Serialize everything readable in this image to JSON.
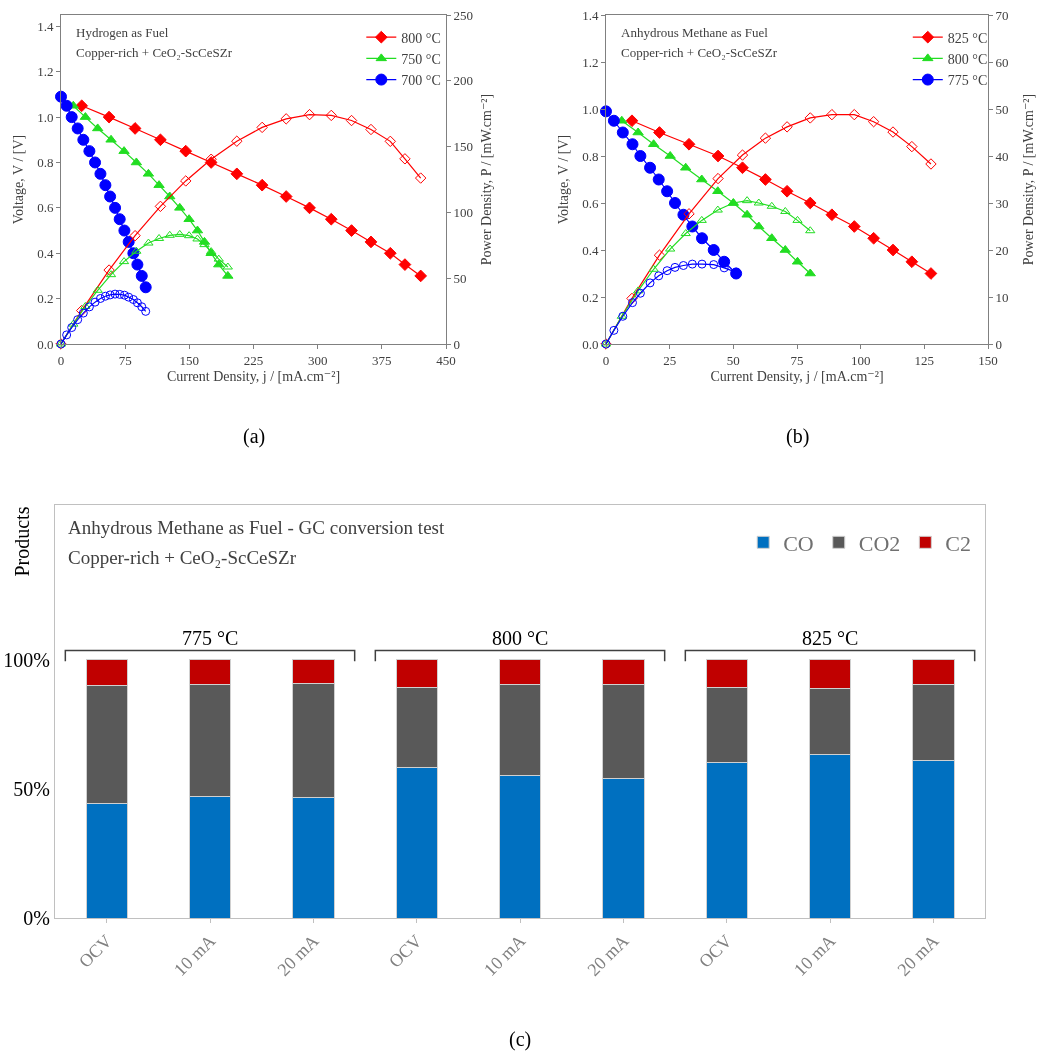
{
  "chart_data": [
    {
      "type": "line",
      "title": "Hydrogen as Fuel",
      "subtitle": "Copper-rich + CeO₂-ScCeSZr",
      "xlabel": "Current Density, j / [mA.cm⁻²]",
      "ylabel": "Voltage, V / [V]",
      "y2label": "Power Density, P / [mW.cm⁻²]",
      "xlim": [
        0,
        450
      ],
      "xticks": [
        0,
        75,
        150,
        225,
        300,
        375,
        450
      ],
      "ylim": [
        0,
        1.45
      ],
      "yticks": [
        {
          "value": 0,
          "label": "0.0"
        },
        0.2,
        0.4,
        0.6,
        0.8,
        {
          "value": 1,
          "label": "1.0"
        },
        1.2,
        1.4
      ],
      "y2lim": [
        0,
        250
      ],
      "y2ticks": [
        0,
        50,
        100,
        150,
        200,
        250
      ],
      "grid": false,
      "legend": "top right",
      "line_style": "solid",
      "annotations": [
        "(a)"
      ],
      "series": [
        {
          "name": "800 °C",
          "color": "#ff0000",
          "marker": "diamond",
          "x": [
            24.2,
            56.2,
            86.6,
            116.2,
            145.8,
            175.5,
            205.5,
            235.1,
            263.2,
            290.5,
            315.9,
            339.6,
            362.3,
            384.9,
            402,
            420.4
          ],
          "values": [
            1.05,
            1.0,
            0.95,
            0.9,
            0.85,
            0.8,
            0.75,
            0.7,
            0.65,
            0.6,
            0.55,
            0.5,
            0.45,
            0.4,
            0.35,
            0.3
          ]
        },
        {
          "name": "750 °C",
          "color": "#22dd22",
          "marker": "triangle",
          "x": [
            14.4,
            28.5,
            42.9,
            58.5,
            73.7,
            88.1,
            102.2,
            114.6,
            127.1,
            138.8,
            149.7,
            159.5,
            167.7,
            175.5,
            184.4,
            195.0
          ],
          "values": [
            1.05,
            1.0,
            0.95,
            0.9,
            0.85,
            0.8,
            0.75,
            0.7,
            0.65,
            0.6,
            0.55,
            0.5,
            0.45,
            0.4,
            0.35,
            0.3
          ]
        },
        {
          "name": "700 °C",
          "color": "#0000ff",
          "marker": "circle",
          "x": [
            0,
            6.6,
            12.5,
            19.5,
            26.1,
            33.2,
            39.8,
            46.1,
            51.9,
            57.4,
            63.2,
            68.6,
            74.1,
            79.1,
            84.6,
            89.3,
            94.4,
            99.0
          ],
          "values": [
            1.09,
            1.05,
            1.0,
            0.95,
            0.9,
            0.85,
            0.8,
            0.75,
            0.7,
            0.65,
            0.6,
            0.55,
            0.5,
            0.45,
            0.4,
            0.35,
            0.3,
            0.25
          ]
        },
        {
          "color": "#ff0000",
          "marker": "diamond",
          "axis": "y2",
          "x": [
            0,
            24.2,
            56.2,
            86.6,
            116.2,
            145.8,
            175.5,
            205.5,
            235.1,
            263.2,
            290.5,
            315.9,
            339.6,
            362.3,
            384.9,
            402,
            420.4
          ],
          "values": [
            0,
            25.4,
            56.2,
            82.3,
            104.6,
            123.9,
            140.4,
            154.1,
            164.6,
            171.1,
            174.3,
            173.7,
            169.8,
            163.0,
            154.0,
            140.7,
            126.1
          ]
        },
        {
          "color": "#22dd22",
          "marker": "triangle",
          "axis": "y2",
          "x": [
            0,
            14.4,
            28.5,
            42.9,
            58.5,
            73.7,
            88.1,
            102.2,
            114.6,
            127.1,
            138.8,
            149.7,
            159.5,
            167.7,
            175.5,
            184.4,
            195.0
          ],
          "values": [
            0,
            15.1,
            28.5,
            40.8,
            52.7,
            62.6,
            70.5,
            76.7,
            80.2,
            82.6,
            83.3,
            82.3,
            79.8,
            75.5,
            70.2,
            64.5,
            58.5
          ]
        },
        {
          "color": "#0000ff",
          "marker": "circle",
          "axis": "y2",
          "x": [
            0,
            6.6,
            12.5,
            19.5,
            26.1,
            33.2,
            39.8,
            46.1,
            51.9,
            57.4,
            63.2,
            68.6,
            74.1,
            79.1,
            84.6,
            89.3,
            94.4,
            99.0
          ],
          "values": [
            0,
            6.9,
            12.5,
            18.5,
            23.5,
            28.2,
            31.8,
            34.6,
            36.3,
            37.3,
            37.9,
            37.7,
            37.1,
            35.6,
            33.8,
            31.3,
            28.3,
            24.8
          ]
        }
      ]
    },
    {
      "type": "line",
      "title": "Anhydrous Methane as Fuel",
      "subtitle": "Copper-rich + CeO₂-ScCeSZr",
      "xlabel": "Current Density, j / [mA.cm⁻²]",
      "ylabel": "Voltage, V / [V]",
      "y2label": "Power Density, P / [mW.cm⁻²]",
      "xlim": [
        0,
        150
      ],
      "xticks": [
        0,
        25,
        50,
        75,
        100,
        125,
        150
      ],
      "ylim": [
        0,
        1.4
      ],
      "yticks": [
        {
          "value": 0,
          "label": "0.0"
        },
        0.2,
        0.4,
        0.6,
        0.8,
        {
          "value": 1,
          "label": "1.0"
        },
        1.2,
        1.4
      ],
      "y2lim": [
        0,
        70
      ],
      "y2ticks": [
        0,
        10,
        20,
        30,
        40,
        50,
        60,
        70
      ],
      "grid": false,
      "legend": "top right",
      "line_style": "solid",
      "annotations": [
        "(b)"
      ],
      "series": [
        {
          "name": "825 °C",
          "color": "#ff0000",
          "marker": "diamond",
          "x": [
            10.2,
            21.0,
            32.6,
            44.0,
            53.6,
            62.6,
            71.1,
            80.2,
            88.7,
            97.5,
            105.1,
            112.7,
            120.1,
            127.6
          ],
          "values": [
            0.95,
            0.9,
            0.85,
            0.8,
            0.75,
            0.7,
            0.65,
            0.6,
            0.55,
            0.5,
            0.45,
            0.4,
            0.35,
            0.3
          ]
        },
        {
          "name": "800 °C",
          "color": "#22dd22",
          "marker": "triangle",
          "x": [
            6.2,
            12.6,
            18.7,
            25.2,
            31.3,
            37.6,
            43.9,
            50.0,
            55.4,
            60.0,
            65.1,
            70.4,
            75.2,
            80.2
          ],
          "values": [
            0.95,
            0.9,
            0.85,
            0.8,
            0.75,
            0.7,
            0.65,
            0.6,
            0.55,
            0.5,
            0.45,
            0.4,
            0.35,
            0.3
          ]
        },
        {
          "name": "775 °C",
          "color": "#0000ff",
          "marker": "circle",
          "x": [
            0,
            3.1,
            6.6,
            10.4,
            13.5,
            17.3,
            20.7,
            24.0,
            27.1,
            30.4,
            33.9,
            37.7,
            42.3,
            46.4,
            51.1
          ],
          "values": [
            0.99,
            0.95,
            0.9,
            0.85,
            0.8,
            0.75,
            0.7,
            0.65,
            0.6,
            0.55,
            0.5,
            0.45,
            0.4,
            0.35,
            0.3
          ]
        },
        {
          "color": "#ff0000",
          "marker": "diamond",
          "axis": "y2",
          "x": [
            0,
            10.2,
            21.0,
            32.6,
            44.0,
            53.6,
            62.6,
            71.1,
            80.2,
            88.7,
            97.5,
            105.1,
            112.7,
            120.1,
            127.6
          ],
          "values": [
            0,
            9.7,
            18.9,
            27.7,
            35.2,
            40.2,
            43.8,
            46.2,
            48.1,
            48.8,
            48.8,
            47.3,
            45.1,
            42.0,
            38.3
          ]
        },
        {
          "color": "#22dd22",
          "marker": "triangle",
          "axis": "y2",
          "x": [
            0,
            6.2,
            12.6,
            18.7,
            25.2,
            31.3,
            37.6,
            43.9,
            50.0,
            55.4,
            60.0,
            65.1,
            70.4,
            75.2,
            80.2
          ],
          "values": [
            0,
            5.9,
            11.3,
            15.9,
            20.2,
            23.5,
            26.3,
            28.5,
            30.0,
            30.5,
            30.0,
            29.3,
            28.2,
            26.3,
            24.1
          ]
        },
        {
          "color": "#0000ff",
          "marker": "circle",
          "axis": "y2",
          "x": [
            0,
            3.1,
            6.6,
            10.4,
            13.5,
            17.3,
            20.7,
            24.0,
            27.1,
            30.4,
            33.9,
            37.7,
            42.3,
            46.4,
            51.1
          ],
          "values": [
            0,
            2.9,
            5.9,
            8.8,
            10.8,
            13.0,
            14.5,
            15.6,
            16.3,
            16.7,
            17.0,
            17.0,
            16.9,
            16.2,
            15.3
          ]
        }
      ]
    },
    {
      "type": "bar",
      "stacked": true,
      "title": "Anhydrous Methane as Fuel - GC conversion test",
      "subtitle": "Copper-rich + CeO₂-ScCeSZr",
      "ylabel": "Products",
      "categories": [
        "OCV",
        "10 mA",
        "20 mA",
        "OCV",
        "10 mA",
        "20 mA",
        "OCV",
        "10 mA",
        "20 mA"
      ],
      "ylim": [
        0,
        160
      ],
      "yticks": [
        {
          "value": 0,
          "label": "0%"
        },
        {
          "value": 50,
          "label": "50%"
        },
        {
          "value": 100,
          "label": "100%"
        }
      ],
      "grid": false,
      "legend": "top right",
      "annotations": [
        "775 °C",
        "800 °C",
        "825 °C",
        "(c)"
      ],
      "series": [
        {
          "name": "CO",
          "color": "#0070c0",
          "values": [
            44.3,
            47.2,
            46.6,
            58.5,
            55.2,
            54.1,
            60.1,
            63.4,
            61.1
          ]
        },
        {
          "name": "CO2",
          "color": "#595959",
          "values": [
            45.6,
            43.3,
            44.1,
            30.7,
            35.3,
            36.4,
            29.3,
            25.5,
            29.4
          ]
        },
        {
          "name": "C2",
          "color": "#c00000",
          "values": [
            10.1,
            9.5,
            9.3,
            10.8,
            9.5,
            9.5,
            10.6,
            11.1,
            9.5
          ]
        }
      ]
    }
  ]
}
